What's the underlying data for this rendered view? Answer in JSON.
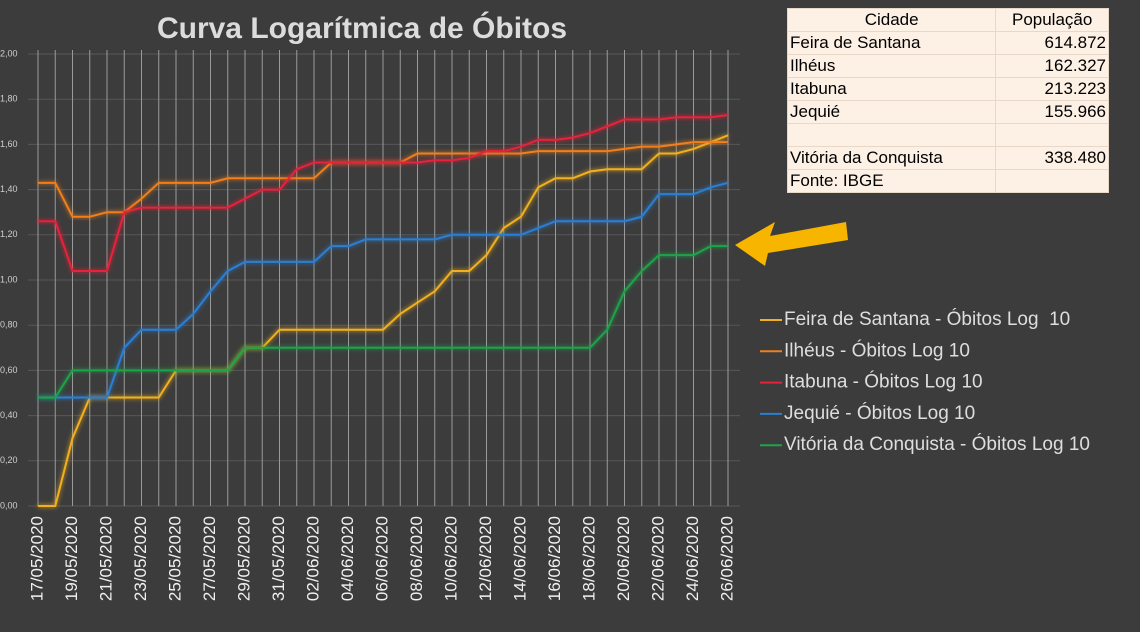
{
  "chart_data": {
    "type": "line",
    "title": "Curva Logarítmica de Óbitos",
    "categories": [
      "17/05/2020",
      null,
      "19/05/2020",
      null,
      "21/05/2020",
      null,
      "23/05/2020",
      null,
      "25/05/2020",
      null,
      "27/05/2020",
      null,
      "29/05/2020",
      null,
      "31/05/2020",
      null,
      "02/06/2020",
      null,
      "04/06/2020",
      null,
      "06/06/2020",
      null,
      "08/06/2020",
      null,
      "10/06/2020",
      null,
      "12/06/2020",
      null,
      "14/06/2020",
      null,
      "16/06/2020",
      null,
      "18/06/2020",
      null,
      "20/06/2020",
      null,
      "22/06/2020",
      null,
      "24/06/2020",
      null,
      "26/06/2020"
    ],
    "ylim": [
      0,
      2
    ],
    "yticks": [
      {
        "value": 0,
        "label": "0,00"
      },
      {
        "value": 0.2,
        "label": "0,20"
      },
      {
        "value": 0.4,
        "label": "0,40"
      },
      {
        "value": 0.6,
        "label": "0,60"
      },
      {
        "value": 0.8,
        "label": "0,80"
      },
      {
        "value": 1,
        "label": "1,00"
      },
      {
        "value": 1.2,
        "label": "1,20"
      },
      {
        "value": 1.4,
        "label": "1,40"
      },
      {
        "value": 1.6,
        "label": "1,60"
      },
      {
        "value": 1.8,
        "label": "1,80"
      },
      {
        "value": 2,
        "label": "2,00"
      }
    ],
    "grid": true,
    "series": [
      {
        "name": "Feira de Santana - Óbitos Log  10",
        "color": "#f2b01e",
        "values": [
          0,
          0,
          0.3,
          0.48,
          0.48,
          0.48,
          0.48,
          0.48,
          0.6,
          0.6,
          0.6,
          0.6,
          0.7,
          0.7,
          0.78,
          0.78,
          0.78,
          0.78,
          0.78,
          0.78,
          0.78,
          0.85,
          0.9,
          0.95,
          1.04,
          1.04,
          1.11,
          1.23,
          1.28,
          1.41,
          1.45,
          1.45,
          1.48,
          1.49,
          1.49,
          1.49,
          1.56,
          1.56,
          1.58,
          1.61,
          1.64
        ]
      },
      {
        "name": "Ilhéus - Óbitos Log 10",
        "color": "#f07f1a",
        "values": [
          1.43,
          1.43,
          1.28,
          1.28,
          1.3,
          1.3,
          1.36,
          1.43,
          1.43,
          1.43,
          1.43,
          1.45,
          1.45,
          1.45,
          1.45,
          1.45,
          1.45,
          1.52,
          1.52,
          1.52,
          1.52,
          1.52,
          1.56,
          1.56,
          1.56,
          1.56,
          1.56,
          1.56,
          1.56,
          1.57,
          1.57,
          1.57,
          1.57,
          1.57,
          1.58,
          1.59,
          1.59,
          1.6,
          1.61,
          1.61,
          1.61
        ]
      },
      {
        "name": "Itabuna - Óbitos Log 10",
        "color": "#e8203a",
        "values": [
          1.26,
          1.26,
          1.04,
          1.04,
          1.04,
          1.3,
          1.32,
          1.32,
          1.32,
          1.32,
          1.32,
          1.32,
          1.36,
          1.4,
          1.4,
          1.49,
          1.52,
          1.52,
          1.52,
          1.52,
          1.52,
          1.52,
          1.52,
          1.53,
          1.53,
          1.54,
          1.57,
          1.57,
          1.59,
          1.62,
          1.62,
          1.63,
          1.65,
          1.68,
          1.71,
          1.71,
          1.71,
          1.72,
          1.72,
          1.72,
          1.73
        ]
      },
      {
        "name": "Jequié - Óbitos Log 10",
        "color": "#2a7fd4",
        "values": [
          0.48,
          0.48,
          0.48,
          0.48,
          0.48,
          0.7,
          0.78,
          0.78,
          0.78,
          0.85,
          0.95,
          1.04,
          1.08,
          1.08,
          1.08,
          1.08,
          1.08,
          1.15,
          1.15,
          1.18,
          1.18,
          1.18,
          1.18,
          1.18,
          1.2,
          1.2,
          1.2,
          1.2,
          1.2,
          1.23,
          1.26,
          1.26,
          1.26,
          1.26,
          1.26,
          1.28,
          1.38,
          1.38,
          1.38,
          1.41,
          1.43
        ]
      },
      {
        "name": "Vitória da Conquista - Óbitos Log 10",
        "color": "#1fa44a",
        "values": [
          0.48,
          0.48,
          0.6,
          0.6,
          0.6,
          0.6,
          0.6,
          0.6,
          0.6,
          0.6,
          0.6,
          0.6,
          0.7,
          0.7,
          0.7,
          0.7,
          0.7,
          0.7,
          0.7,
          0.7,
          0.7,
          0.7,
          0.7,
          0.7,
          0.7,
          0.7,
          0.7,
          0.7,
          0.7,
          0.7,
          0.7,
          0.7,
          0.7,
          0.78,
          0.95,
          1.04,
          1.11,
          1.11,
          1.11,
          1.15,
          1.15
        ]
      }
    ]
  },
  "table": {
    "header": [
      "Cidade",
      "População"
    ],
    "rows": [
      [
        "Feira de Santana",
        "614.872"
      ],
      [
        "Ilhéus",
        "162.327"
      ],
      [
        "Itabuna",
        "213.223"
      ],
      [
        "Jequié",
        "155.966"
      ],
      [
        "Vitória da Conquista",
        "338.480"
      ],
      [
        "Fonte: IBGE"
      ]
    ]
  }
}
